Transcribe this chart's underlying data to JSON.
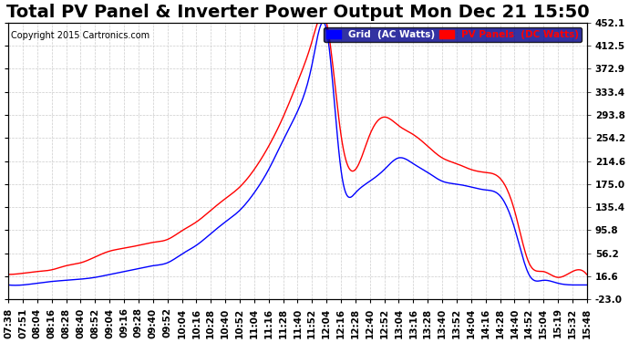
{
  "title": "Total PV Panel & Inverter Power Output Mon Dec 21 15:50",
  "copyright": "Copyright 2015 Cartronics.com",
  "legend_blue": "Grid  (AC Watts)",
  "legend_red": "PV Panels  (DC Watts)",
  "ylabel_right": "",
  "yticks": [
    -23.0,
    16.6,
    56.2,
    95.8,
    135.4,
    175.0,
    214.6,
    254.2,
    293.8,
    333.4,
    372.9,
    412.5,
    452.1
  ],
  "ylim": [
    -23.0,
    452.1
  ],
  "bg_color": "#ffffff",
  "grid_color": "#cccccc",
  "blue_color": "#0000ff",
  "red_color": "#ff0000",
  "title_fontsize": 14,
  "tick_fontsize": 7.5,
  "xtick_labels": [
    "07:38",
    "07:51",
    "08:04",
    "08:16",
    "08:28",
    "08:40",
    "08:52",
    "09:04",
    "09:16",
    "09:28",
    "09:40",
    "09:52",
    "10:04",
    "10:16",
    "10:28",
    "10:40",
    "10:52",
    "11:04",
    "11:16",
    "11:28",
    "11:40",
    "11:52",
    "12:04",
    "12:16",
    "12:28",
    "12:40",
    "12:52",
    "13:04",
    "13:16",
    "13:28",
    "13:40",
    "13:52",
    "14:04",
    "14:16",
    "14:28",
    "14:40",
    "14:52",
    "15:04",
    "15:19",
    "15:32",
    "15:48"
  ]
}
